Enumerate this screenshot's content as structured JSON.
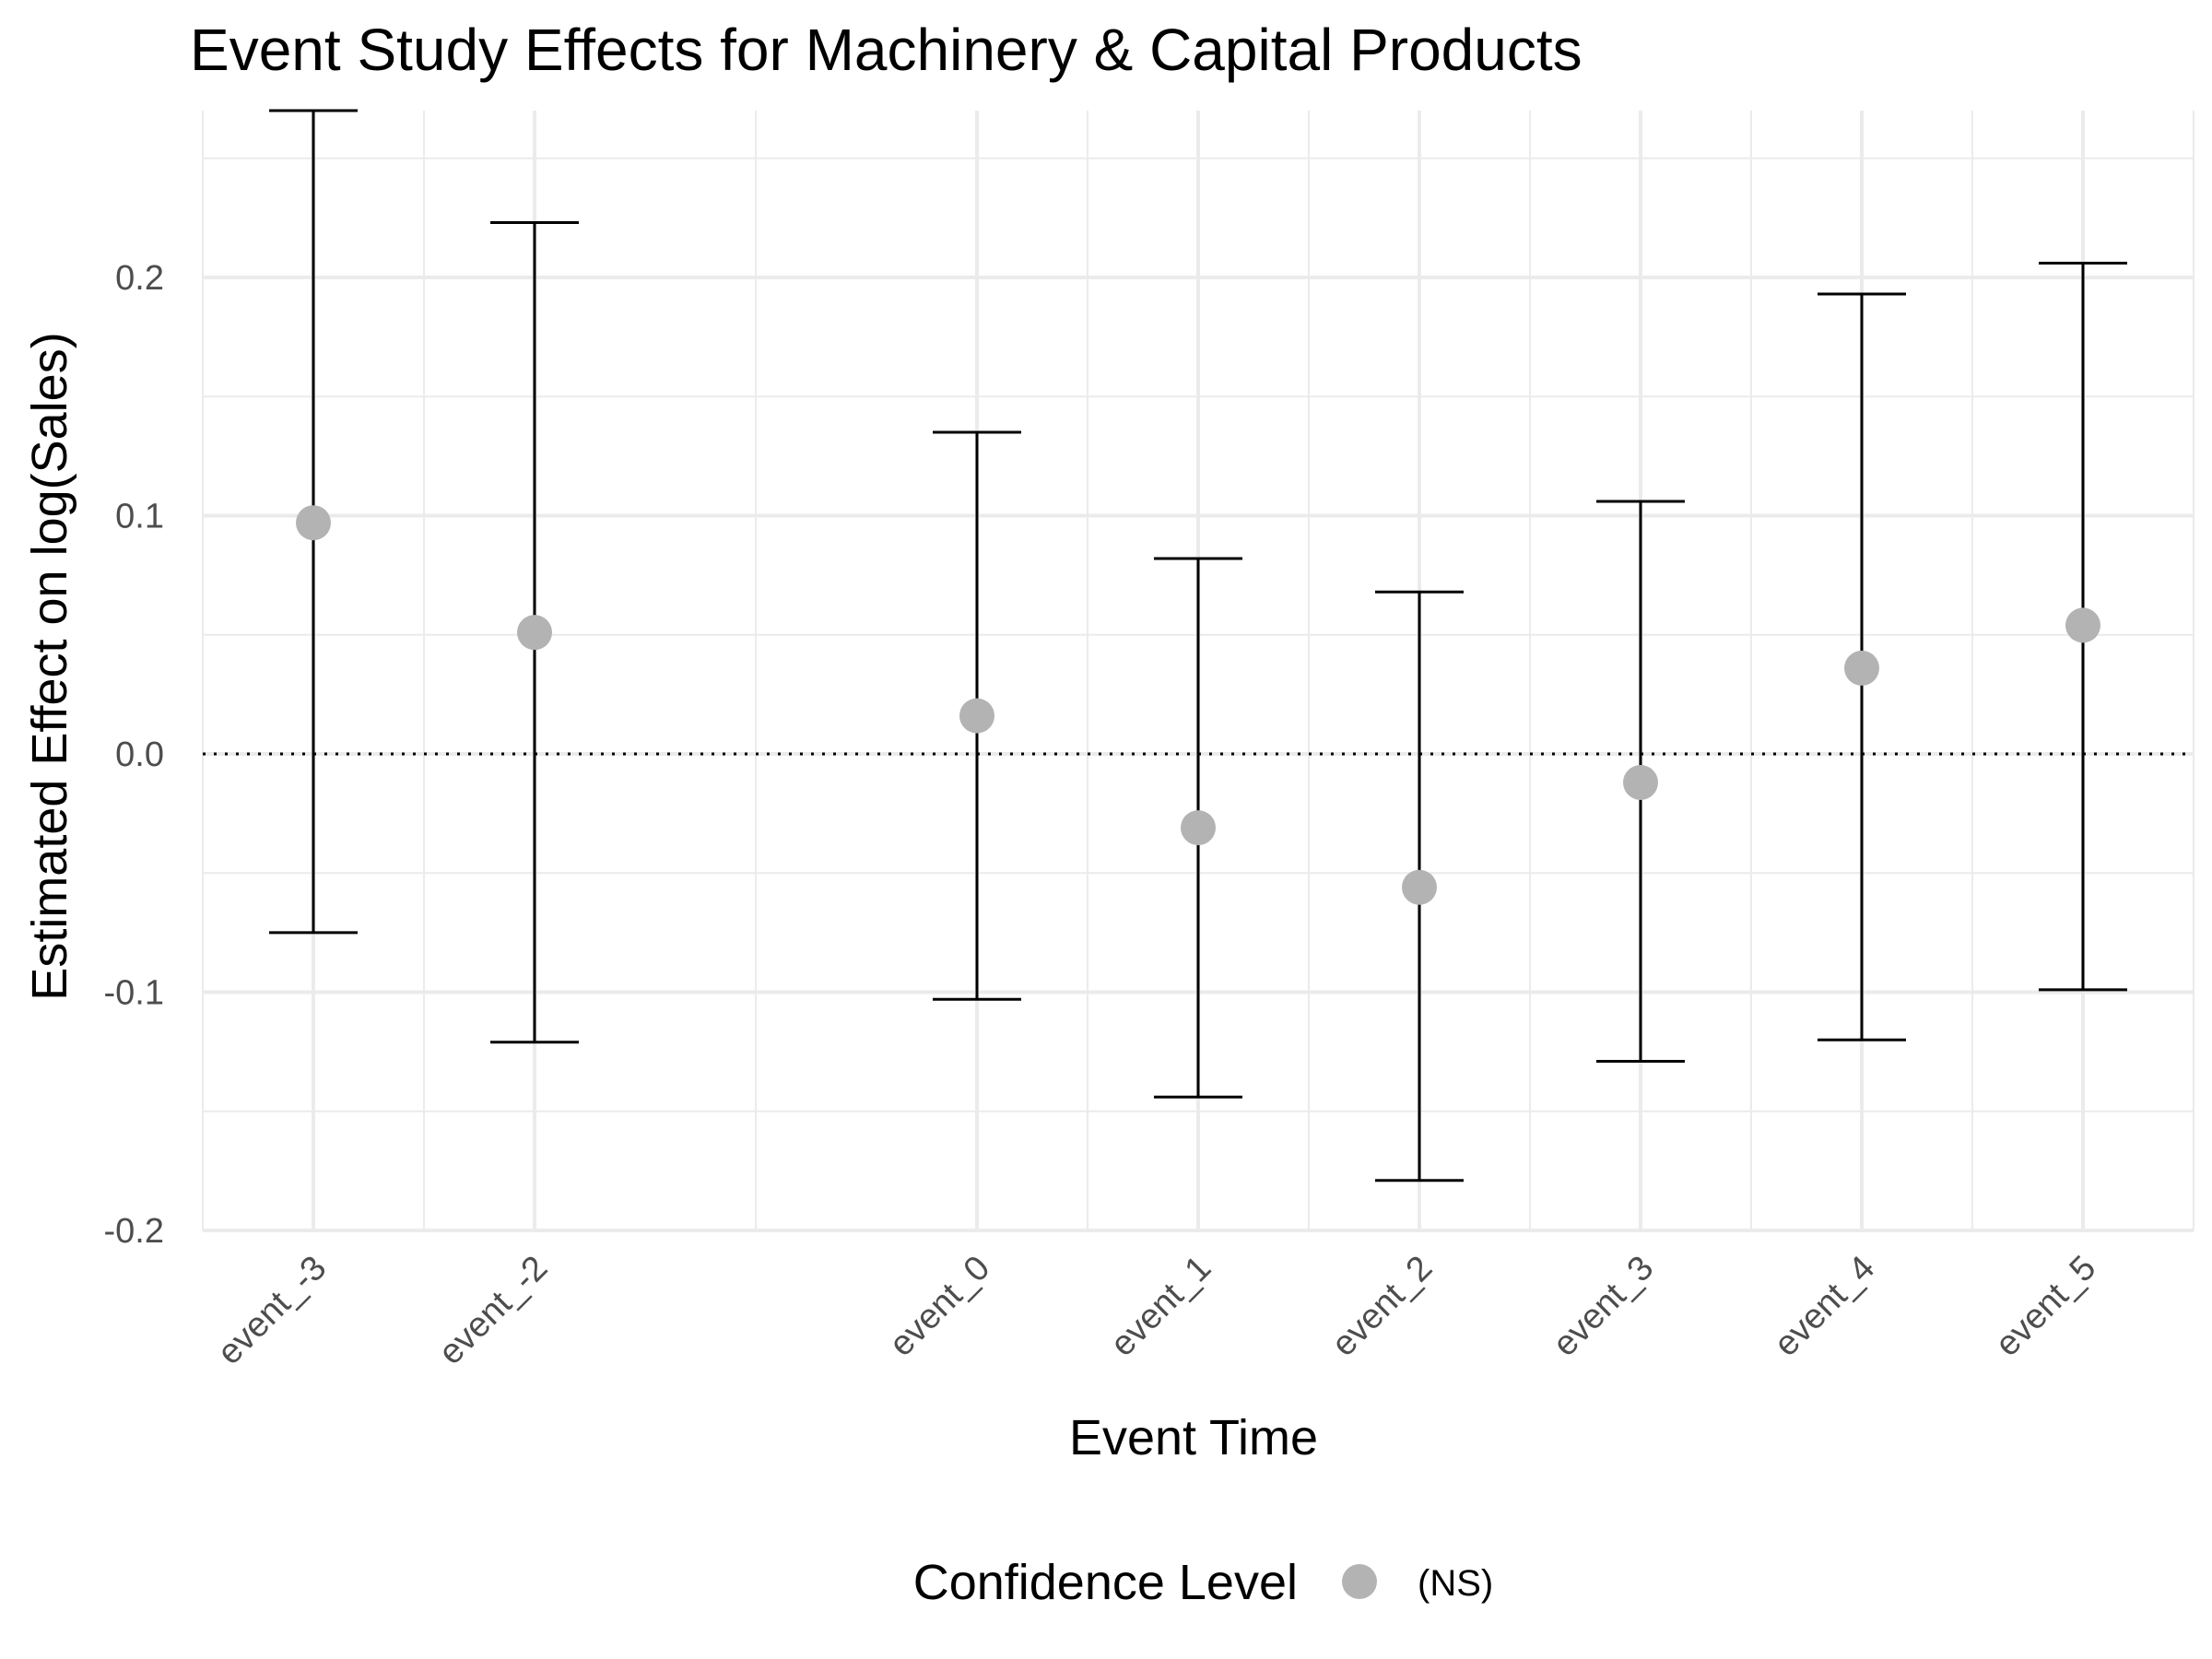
{
  "chart_data": {
    "type": "scatter",
    "title": "Event Study Effects for Machinery & Capital Products",
    "xlabel": "Event Time",
    "ylabel": "Estimated Effect on log(Sales)",
    "x_positions": [
      -3,
      -2,
      0,
      1,
      2,
      3,
      4,
      5
    ],
    "xlim": [
      -3.5,
      5.5
    ],
    "ylim": [
      -0.2,
      0.27
    ],
    "y_ticks": [
      -0.2,
      -0.1,
      0.0,
      0.1,
      0.2
    ],
    "y_tick_labels": [
      "-0.2",
      "-0.1",
      "0.0",
      "0.1",
      "0.2"
    ],
    "reference_line": {
      "y": 0,
      "style": "dotted"
    },
    "grid": true,
    "points": [
      {
        "label": "event_-3",
        "x": -3,
        "estimate": 0.097,
        "ci_low": -0.075,
        "ci_high": 0.27
      },
      {
        "label": "event_-2",
        "x": -2,
        "estimate": 0.051,
        "ci_low": -0.121,
        "ci_high": 0.223
      },
      {
        "label": "event_0",
        "x": 0,
        "estimate": 0.016,
        "ci_low": -0.103,
        "ci_high": 0.135
      },
      {
        "label": "event_1",
        "x": 1,
        "estimate": -0.031,
        "ci_low": -0.144,
        "ci_high": 0.082
      },
      {
        "label": "event_2",
        "x": 2,
        "estimate": -0.056,
        "ci_low": -0.179,
        "ci_high": 0.068
      },
      {
        "label": "event_3",
        "x": 3,
        "estimate": -0.012,
        "ci_low": -0.129,
        "ci_high": 0.106
      },
      {
        "label": "event_4",
        "x": 4,
        "estimate": 0.036,
        "ci_low": -0.12,
        "ci_high": 0.193
      },
      {
        "label": "event_5",
        "x": 5,
        "estimate": 0.054,
        "ci_low": -0.099,
        "ci_high": 0.206
      }
    ],
    "point_color": "#b3b3b3",
    "errorbar_color": "#000000",
    "gridline_color": "#ebebeb",
    "legend": {
      "title": "Confidence Level",
      "position": "bottom",
      "items": [
        {
          "label": "(NS)",
          "color": "#b3b3b3"
        }
      ]
    }
  }
}
